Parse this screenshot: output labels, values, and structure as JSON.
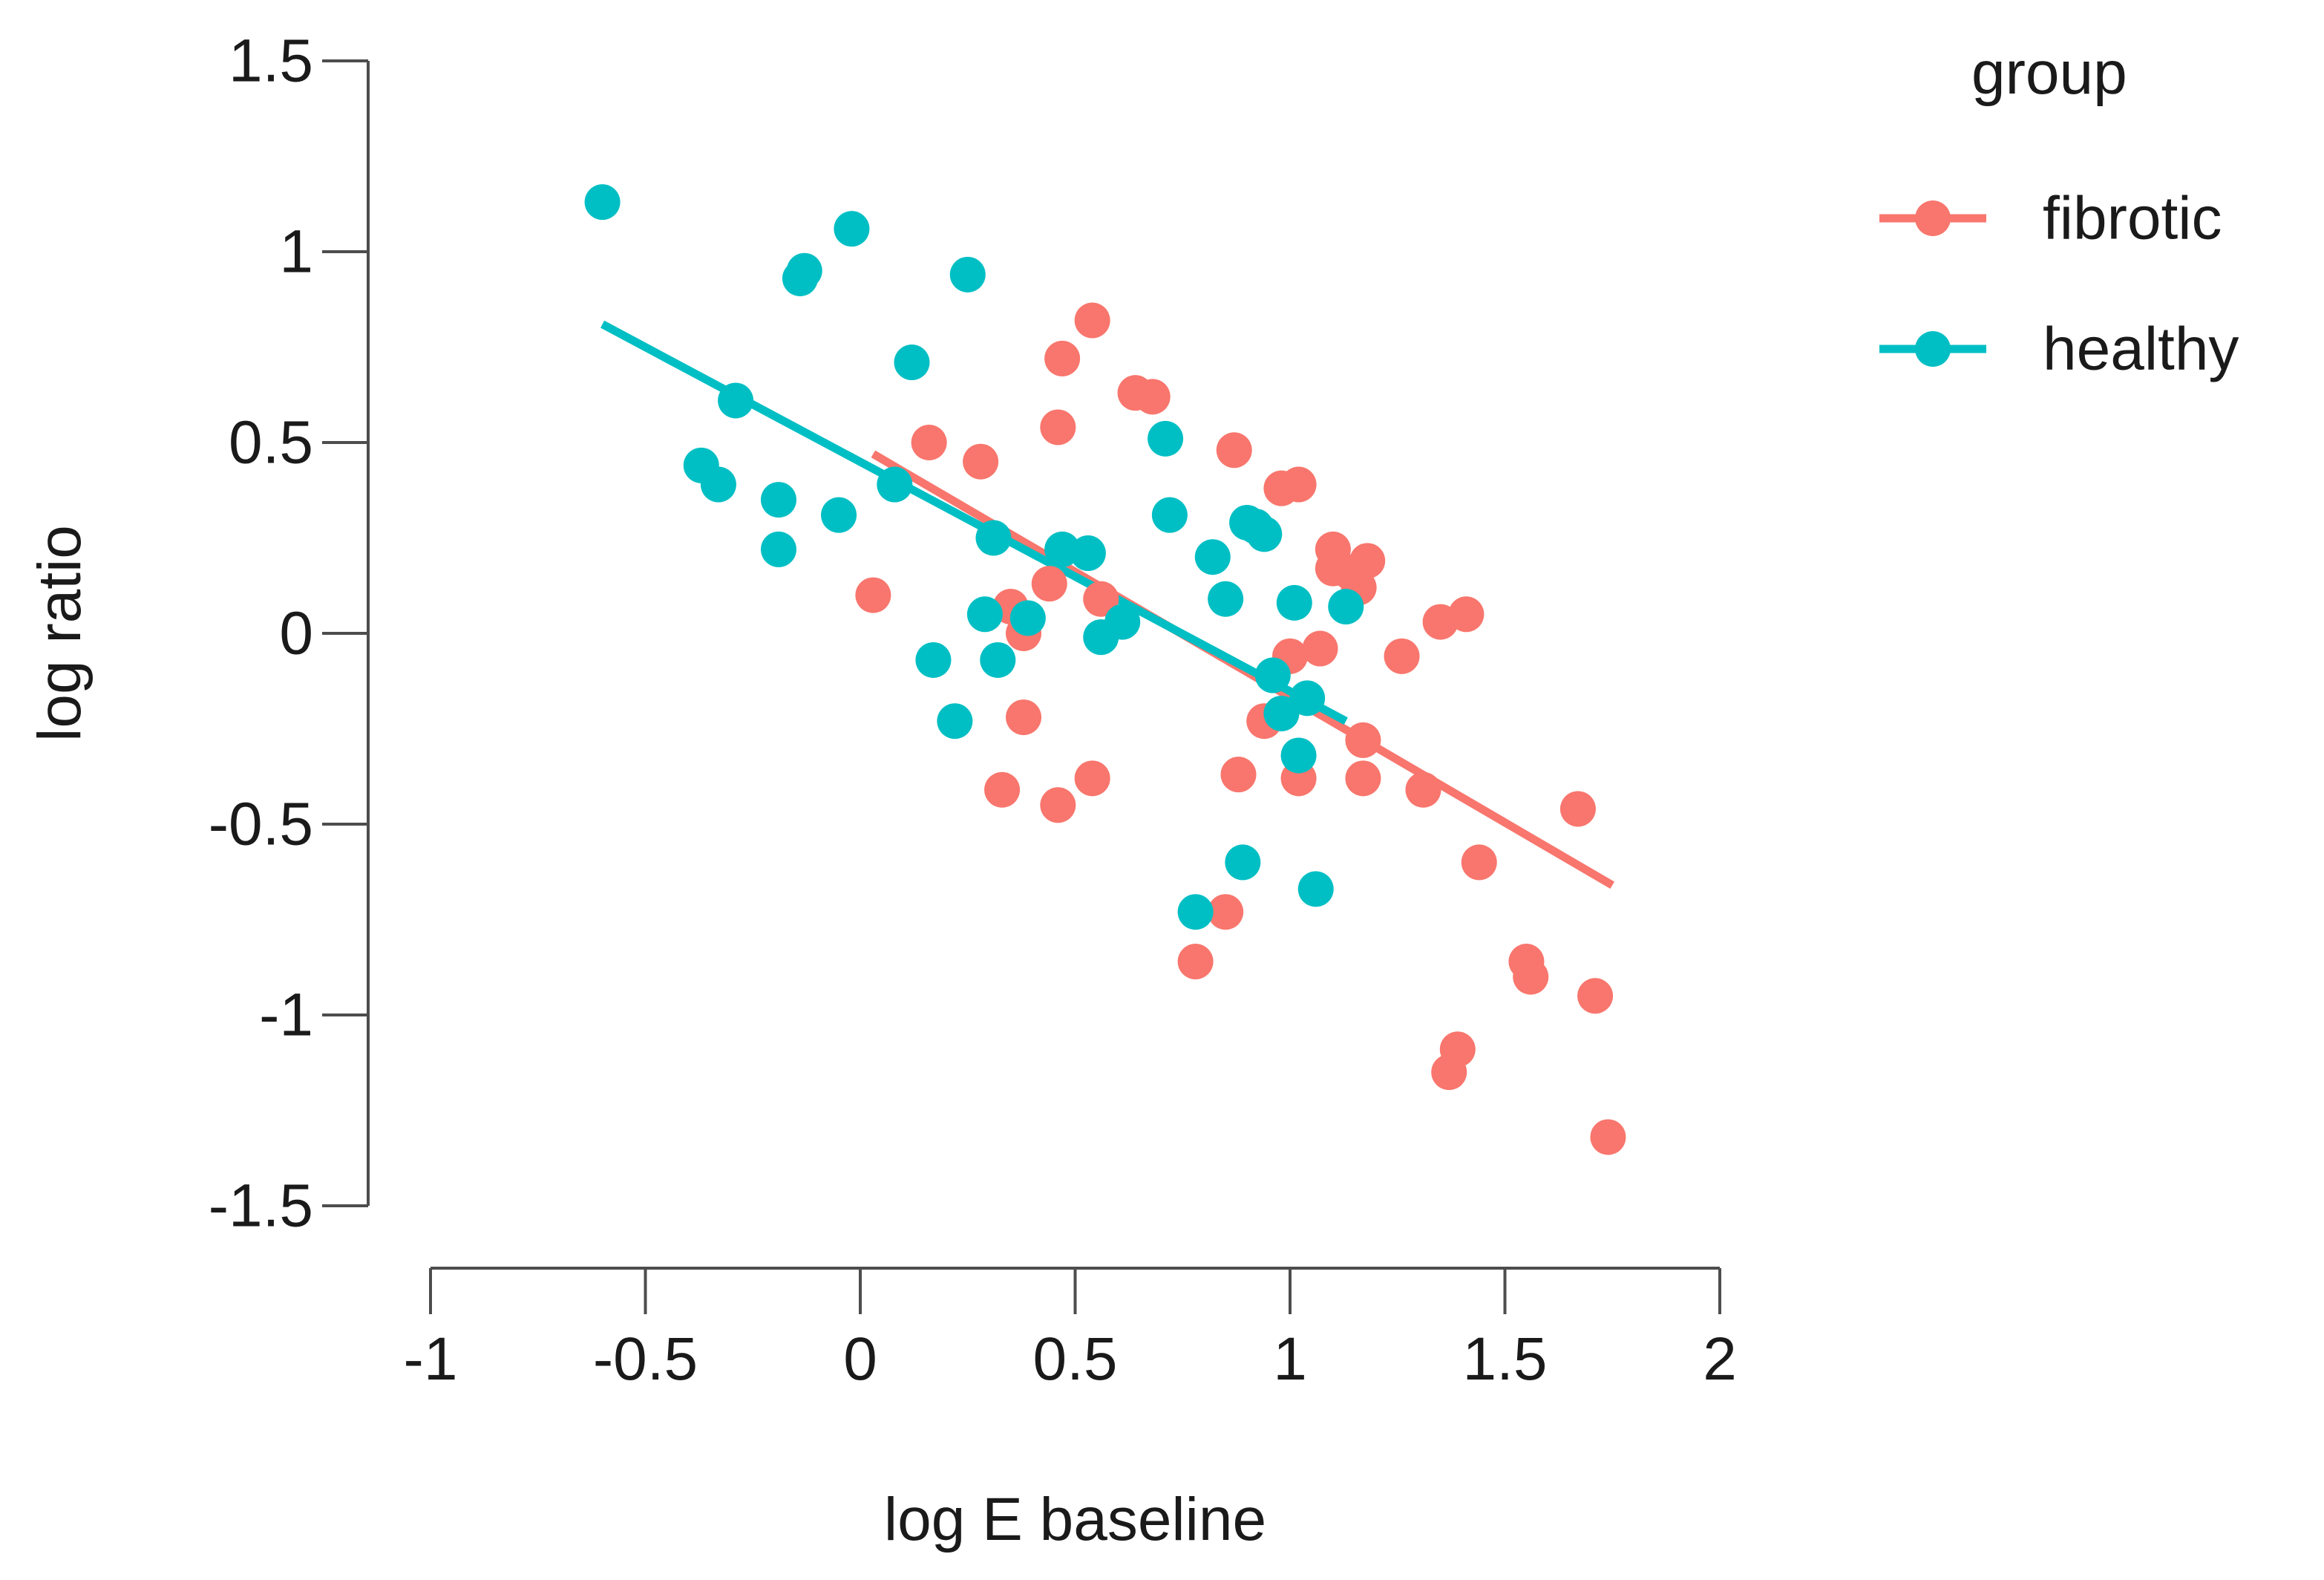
{
  "chart_data": {
    "type": "scatter",
    "title": "",
    "xlabel": "log E baseline",
    "ylabel": "log ratio",
    "xlim": [
      -1,
      2
    ],
    "ylim": [
      -1.5,
      1.5
    ],
    "xticks": [
      {
        "value": -1,
        "label": "-1"
      },
      {
        "value": -0.5,
        "label": "-0.5"
      },
      {
        "value": 0,
        "label": "0"
      },
      {
        "value": 0.5,
        "label": "0.5"
      },
      {
        "value": 1,
        "label": "1"
      },
      {
        "value": 1.5,
        "label": "1.5"
      },
      {
        "value": 2,
        "label": "2"
      }
    ],
    "yticks": [
      {
        "value": 1.5,
        "label": "1.5"
      },
      {
        "value": 1,
        "label": "1"
      },
      {
        "value": 0.5,
        "label": "0.5"
      },
      {
        "value": 0,
        "label": "0"
      },
      {
        "value": -0.5,
        "label": "-0.5"
      },
      {
        "value": -1,
        "label": "-1"
      },
      {
        "value": -1.5,
        "label": "-1.5"
      }
    ],
    "grid": false,
    "legend": {
      "title": "group",
      "position": "right"
    },
    "series": [
      {
        "name": "fibrotic",
        "color": "#F8766D",
        "trend": {
          "x": [
            0.03,
            1.75
          ],
          "y": [
            0.47,
            -0.66
          ]
        },
        "points": [
          {
            "x": 0.03,
            "y": 0.1
          },
          {
            "x": 0.16,
            "y": 0.5
          },
          {
            "x": 0.28,
            "y": 0.45
          },
          {
            "x": 0.33,
            "y": -0.41
          },
          {
            "x": 0.35,
            "y": 0.07
          },
          {
            "x": 0.38,
            "y": 0.0
          },
          {
            "x": 0.38,
            "y": -0.22
          },
          {
            "x": 0.44,
            "y": 0.13
          },
          {
            "x": 0.46,
            "y": -0.45
          },
          {
            "x": 0.46,
            "y": 0.54
          },
          {
            "x": 0.47,
            "y": 0.72
          },
          {
            "x": 0.54,
            "y": 0.82
          },
          {
            "x": 0.54,
            "y": -0.38
          },
          {
            "x": 0.56,
            "y": 0.09
          },
          {
            "x": 0.64,
            "y": 0.63
          },
          {
            "x": 0.68,
            "y": 0.62
          },
          {
            "x": 0.78,
            "y": -0.86
          },
          {
            "x": 0.85,
            "y": -0.73
          },
          {
            "x": 0.87,
            "y": 0.48
          },
          {
            "x": 0.88,
            "y": -0.37
          },
          {
            "x": 0.94,
            "y": -0.23
          },
          {
            "x": 0.98,
            "y": 0.38
          },
          {
            "x": 1.0,
            "y": -0.06
          },
          {
            "x": 1.02,
            "y": 0.39
          },
          {
            "x": 1.02,
            "y": -0.38
          },
          {
            "x": 1.07,
            "y": -0.04
          },
          {
            "x": 1.1,
            "y": 0.22
          },
          {
            "x": 1.1,
            "y": 0.17
          },
          {
            "x": 1.14,
            "y": 0.16
          },
          {
            "x": 1.16,
            "y": 0.12
          },
          {
            "x": 1.17,
            "y": -0.28
          },
          {
            "x": 1.17,
            "y": -0.38
          },
          {
            "x": 1.18,
            "y": 0.19
          },
          {
            "x": 1.26,
            "y": -0.06
          },
          {
            "x": 1.31,
            "y": -0.41
          },
          {
            "x": 1.35,
            "y": 0.03
          },
          {
            "x": 1.37,
            "y": -1.15
          },
          {
            "x": 1.39,
            "y": -1.09
          },
          {
            "x": 1.41,
            "y": 0.05
          },
          {
            "x": 1.44,
            "y": -0.6
          },
          {
            "x": 1.55,
            "y": -0.86
          },
          {
            "x": 1.56,
            "y": -0.9
          },
          {
            "x": 1.67,
            "y": -0.46
          },
          {
            "x": 1.71,
            "y": -0.95
          },
          {
            "x": 1.74,
            "y": -1.32
          }
        ]
      },
      {
        "name": "healthy",
        "color": "#00BFC4",
        "trend": {
          "x": [
            -0.6,
            1.13
          ],
          "y": [
            0.81,
            -0.23
          ]
        },
        "points": [
          {
            "x": -0.6,
            "y": 1.13
          },
          {
            "x": -0.37,
            "y": 0.44
          },
          {
            "x": -0.33,
            "y": 0.39
          },
          {
            "x": -0.29,
            "y": 0.61
          },
          {
            "x": -0.19,
            "y": 0.35
          },
          {
            "x": -0.19,
            "y": 0.22
          },
          {
            "x": -0.14,
            "y": 0.93
          },
          {
            "x": -0.13,
            "y": 0.95
          },
          {
            "x": -0.05,
            "y": 0.31
          },
          {
            "x": -0.02,
            "y": 1.06
          },
          {
            "x": 0.08,
            "y": 0.39
          },
          {
            "x": 0.12,
            "y": 0.71
          },
          {
            "x": 0.17,
            "y": -0.07
          },
          {
            "x": 0.22,
            "y": -0.23
          },
          {
            "x": 0.25,
            "y": 0.94
          },
          {
            "x": 0.29,
            "y": 0.05
          },
          {
            "x": 0.31,
            "y": 0.25
          },
          {
            "x": 0.32,
            "y": -0.07
          },
          {
            "x": 0.39,
            "y": 0.04
          },
          {
            "x": 0.47,
            "y": 0.22
          },
          {
            "x": 0.53,
            "y": 0.21
          },
          {
            "x": 0.56,
            "y": -0.01
          },
          {
            "x": 0.61,
            "y": 0.03
          },
          {
            "x": 0.71,
            "y": 0.51
          },
          {
            "x": 0.72,
            "y": 0.31
          },
          {
            "x": 0.78,
            "y": -0.73
          },
          {
            "x": 0.82,
            "y": 0.2
          },
          {
            "x": 0.85,
            "y": 0.09
          },
          {
            "x": 0.89,
            "y": -0.6
          },
          {
            "x": 0.9,
            "y": 0.29
          },
          {
            "x": 0.92,
            "y": 0.28
          },
          {
            "x": 0.94,
            "y": 0.26
          },
          {
            "x": 0.96,
            "y": -0.11
          },
          {
            "x": 0.98,
            "y": -0.21
          },
          {
            "x": 1.01,
            "y": 0.08
          },
          {
            "x": 1.02,
            "y": -0.32
          },
          {
            "x": 1.04,
            "y": -0.17
          },
          {
            "x": 1.06,
            "y": -0.67
          },
          {
            "x": 1.13,
            "y": 0.07
          }
        ]
      }
    ]
  }
}
